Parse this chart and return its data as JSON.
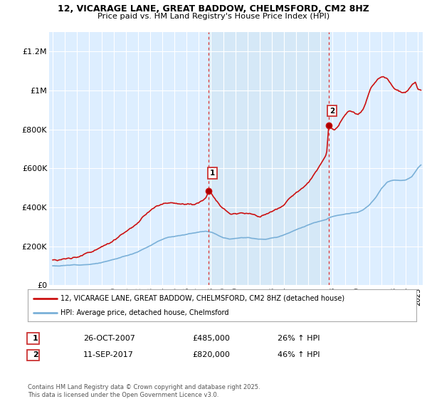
{
  "title": "12, VICARAGE LANE, GREAT BADDOW, CHELMSFORD, CM2 8HZ",
  "subtitle": "Price paid vs. HM Land Registry's House Price Index (HPI)",
  "ylabel_ticks": [
    "£0",
    "£200K",
    "£400K",
    "£600K",
    "£800K",
    "£1M",
    "£1.2M"
  ],
  "ytick_values": [
    0,
    200000,
    400000,
    600000,
    800000,
    1000000,
    1200000
  ],
  "ylim": [
    0,
    1300000
  ],
  "xlim_start": 1994.7,
  "xlim_end": 2025.4,
  "bg_color": "#ddeeff",
  "hpi_line_color": "#7ab0d8",
  "sale_line_color": "#cc1111",
  "vline_color": "#dd3333",
  "span_color": "#d5e8f7",
  "marker1_x": 2007.82,
  "marker1_y": 485000,
  "marker2_x": 2017.69,
  "marker2_y": 820000,
  "legend_line1": "12, VICARAGE LANE, GREAT BADDOW, CHELMSFORD, CM2 8HZ (detached house)",
  "legend_line2": "HPI: Average price, detached house, Chelmsford",
  "sale1_date": "26-OCT-2007",
  "sale1_price": "£485,000",
  "sale1_hpi": "26% ↑ HPI",
  "sale2_date": "11-SEP-2017",
  "sale2_price": "£820,000",
  "sale2_hpi": "46% ↑ HPI",
  "footnote": "Contains HM Land Registry data © Crown copyright and database right 2025.\nThis data is licensed under the Open Government Licence v3.0."
}
